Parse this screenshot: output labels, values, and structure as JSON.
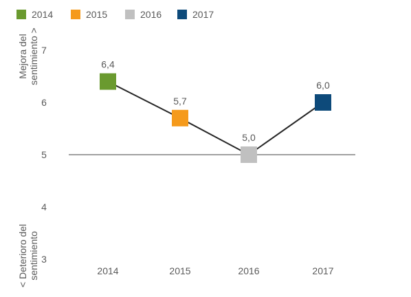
{
  "chart_data": {
    "type": "line",
    "categories": [
      "2014",
      "2015",
      "2016",
      "2017"
    ],
    "values": [
      6.4,
      5.7,
      5.0,
      6.0
    ],
    "data_labels": [
      "6,4",
      "5,7",
      "5,0",
      "6,0"
    ],
    "point_colors": [
      "#6a9a2f",
      "#f59a1b",
      "#c0c0c0",
      "#0d4a7a"
    ],
    "line_color": "#262626",
    "reference_line": 5,
    "ylim": [
      3,
      7
    ],
    "yticks": [
      3,
      4,
      5,
      6,
      7
    ],
    "ytick_labels": [
      "3",
      "4",
      "5",
      "6",
      "7"
    ],
    "ylabel_top": [
      "Mejora del",
      "sentimiento >"
    ],
    "ylabel_bottom": [
      "< Deterioro del",
      "sentimiento"
    ],
    "legend": {
      "position": "top-left",
      "items": [
        {
          "label": "2014",
          "color": "#6a9a2f"
        },
        {
          "label": "2015",
          "color": "#f59a1b"
        },
        {
          "label": "2016",
          "color": "#c0c0c0"
        },
        {
          "label": "2017",
          "color": "#0d4a7a"
        }
      ]
    },
    "grid": false
  }
}
